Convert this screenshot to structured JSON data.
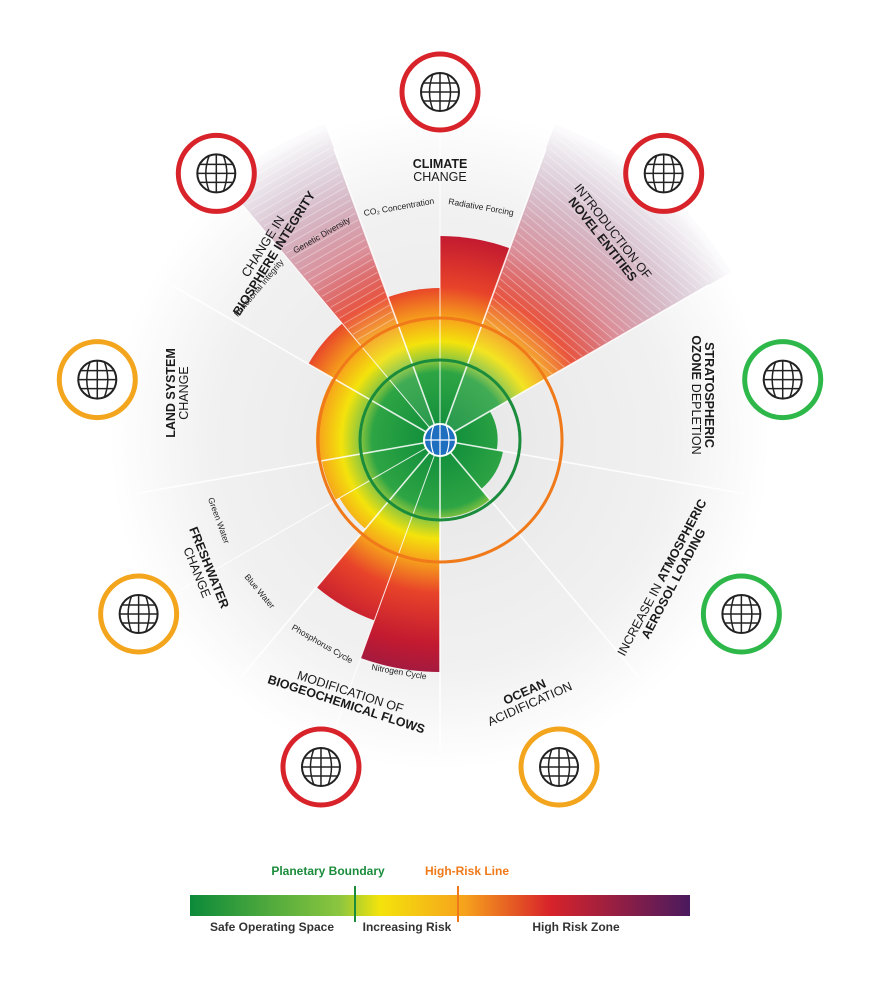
{
  "boundaries": [
    {
      "title": [
        [
          {
            "text": "CLIMATE",
            "bold": true
          }
        ],
        [
          {
            "text": "CHANGE",
            "bold": false
          }
        ]
      ],
      "icon_color": "#d8232a",
      "segments": [
        {
          "label": "CO₂ Concentration",
          "value": 1.9
        },
        {
          "label": "Radiative Forcing",
          "value": 2.55
        }
      ]
    },
    {
      "title": [
        [
          {
            "text": "INTRODUCTION OF",
            "bold": false
          }
        ],
        [
          {
            "text": "NOVEL ENTITIES",
            "bold": true
          }
        ]
      ],
      "icon_color": "#d8232a",
      "segments": [
        {
          "value": 4.2,
          "exceeds_scale": true
        }
      ]
    },
    {
      "title": [
        [
          {
            "text": "STRATOSPHERIC",
            "bold": true
          }
        ],
        [
          {
            "text": "OZONE",
            "bold": true
          },
          {
            "text": "DEPLETION",
            "bold": false
          }
        ]
      ],
      "icon_color": "#2fb84a",
      "segments": [
        {
          "value": 0.72
        }
      ]
    },
    {
      "title": [
        [
          {
            "text": "INCREASE IN",
            "bold": false
          },
          {
            "text": "ATMOSPHERIC",
            "bold": true
          }
        ],
        [
          {
            "text": "AEROSOL LOADING",
            "bold": true
          }
        ]
      ],
      "icon_color": "#2fb84a",
      "segments": [
        {
          "value": 0.8
        }
      ]
    },
    {
      "title": [
        [
          {
            "text": "OCEAN",
            "bold": true
          }
        ],
        [
          {
            "text": "ACIDIFICATION",
            "bold": false
          }
        ]
      ],
      "icon_color": "#f3a51d",
      "segments": [
        {
          "value": 0.97
        }
      ]
    },
    {
      "title": [
        [
          {
            "text": "MODIFICATION OF",
            "bold": false
          }
        ],
        [
          {
            "text": "BIOGEOCHEMICAL FLOWS",
            "bold": true
          }
        ]
      ],
      "icon_color": "#d8232a",
      "segments": [
        {
          "label": "Nitrogen Cycle",
          "value": 2.9
        },
        {
          "label": "Phosphorus Cycle",
          "value": 2.4
        }
      ]
    },
    {
      "title": [
        [
          {
            "text": "FRESHWATER",
            "bold": true
          }
        ],
        [
          {
            "text": "CHANGE",
            "bold": false
          }
        ]
      ],
      "icon_color": "#f3a51d",
      "segments": [
        {
          "label": "Blue Water",
          "value": 1.45
        },
        {
          "label": "Green Water",
          "value": 1.5
        }
      ]
    },
    {
      "title": [
        [
          {
            "text": "LAND SYSTEM",
            "bold": true
          }
        ],
        [
          {
            "text": "CHANGE",
            "bold": false
          }
        ]
      ],
      "icon_color": "#f3a51d",
      "segments": [
        {
          "value": 1.55
        }
      ]
    },
    {
      "title": [
        [
          {
            "text": "CHANGE IN",
            "bold": false
          }
        ],
        [
          {
            "text": "BIOSPHERE INTEGRITY",
            "bold": true
          }
        ]
      ],
      "icon_color": "#d8232a",
      "segments": [
        {
          "label": "Functional Integrity",
          "value": 1.9
        },
        {
          "label": "Genetic Diversity",
          "value": 4.2,
          "exceeds_scale": true
        }
      ]
    }
  ],
  "legend": {
    "planetary_boundary": "Planetary Boundary",
    "high_risk_line": "High-Risk Line",
    "zones": [
      "Safe Operating Space",
      "Increasing Risk",
      "High Risk Zone"
    ]
  }
}
